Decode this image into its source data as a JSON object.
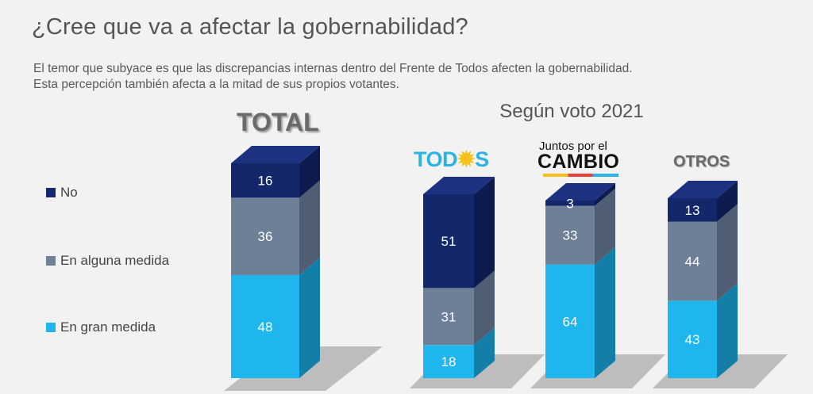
{
  "title": "¿Cree que va a afectar la gobernabilidad?",
  "subtitle": [
    "El temor que subyace es que las discrepancias internas dentro del Frente de Todos afecten la gobernabilidad.",
    "Esta percepción también afecta a la mitad de sus propios votantes."
  ],
  "total_label": "TOTAL",
  "group_title": "Según voto 2021",
  "logos": {
    "todos_text_a": "TOD",
    "todos_sun": "✹",
    "todos_text_b": "S",
    "jxc_line1": "Juntos por el",
    "jxc_line2": "CAMBIO",
    "otros": "OTROS"
  },
  "colors": {
    "No": "#14276a",
    "En alguna medida": "#6e7f98",
    "En gran medida": "#1fb6ee",
    "floor": "#bdbdbd"
  },
  "chart_data": {
    "type": "bar",
    "stacked": true,
    "categories": [
      "TOTAL",
      "Frente de Todos",
      "Juntos por el Cambio",
      "Otros"
    ],
    "series": [
      {
        "name": "En gran medida",
        "values": [
          48,
          18,
          64,
          43
        ]
      },
      {
        "name": "En alguna medida",
        "values": [
          36,
          31,
          33,
          44
        ]
      },
      {
        "name": "No",
        "values": [
          16,
          51,
          3,
          13
        ]
      }
    ],
    "ylim": [
      0,
      100
    ],
    "legend": [
      "No",
      "En alguna medida",
      "En gran medida"
    ],
    "legend_position": "left"
  }
}
